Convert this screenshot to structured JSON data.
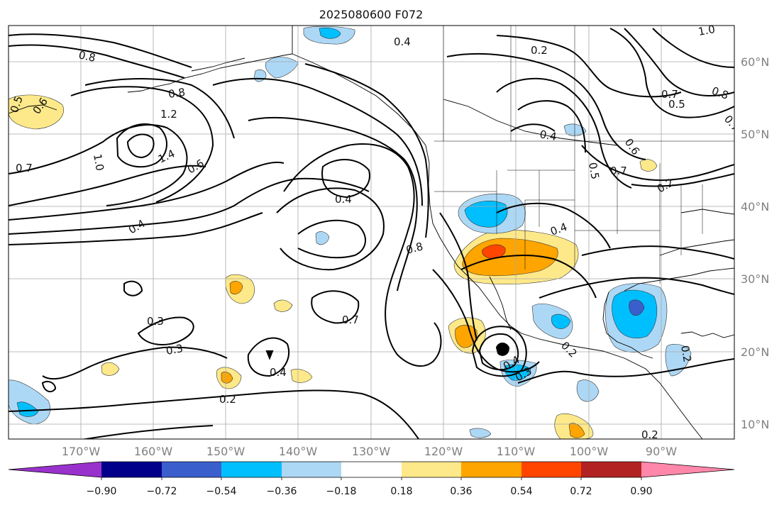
{
  "title": "2025080600 F072",
  "axes": {
    "lon_labels": [
      "170°W",
      "160°W",
      "150°W",
      "140°W",
      "130°W",
      "120°W",
      "110°W",
      "100°W",
      "90°W"
    ],
    "lat_labels": [
      "60°N",
      "50°N",
      "40°N",
      "30°N",
      "20°N",
      "10°N"
    ]
  },
  "colorbar": {
    "tick_labels": [
      "−0.90",
      "−0.72",
      "−0.54",
      "−0.36",
      "−0.18",
      "0.18",
      "0.36",
      "0.54",
      "0.72",
      "0.90"
    ],
    "colors": [
      "#9932cc",
      "#00008b",
      "#3a5fcd",
      "#00bfff",
      "#add8f5",
      "#ffffff",
      "#fee98a",
      "#ffa500",
      "#ff4500",
      "#b22222",
      "#ff88aa"
    ]
  },
  "contour_labels": [
    "0.8",
    "0.4",
    "0.2",
    "1.0",
    "0.8",
    "1.2",
    "1.4",
    "1.0",
    "0.7",
    "0.5",
    "0.6",
    "0.6",
    "0.4",
    "0.4",
    "0.8",
    "0.3",
    "0.3",
    "0.4",
    "0.7",
    "0.2",
    "0.4",
    "0.2",
    "0.3",
    "0.4",
    "0.7",
    "0.8",
    "0.7",
    "0.5",
    "0.6",
    "0.5",
    "0.7",
    "0.2",
    "0.4",
    "0.2",
    "0.2"
  ]
}
